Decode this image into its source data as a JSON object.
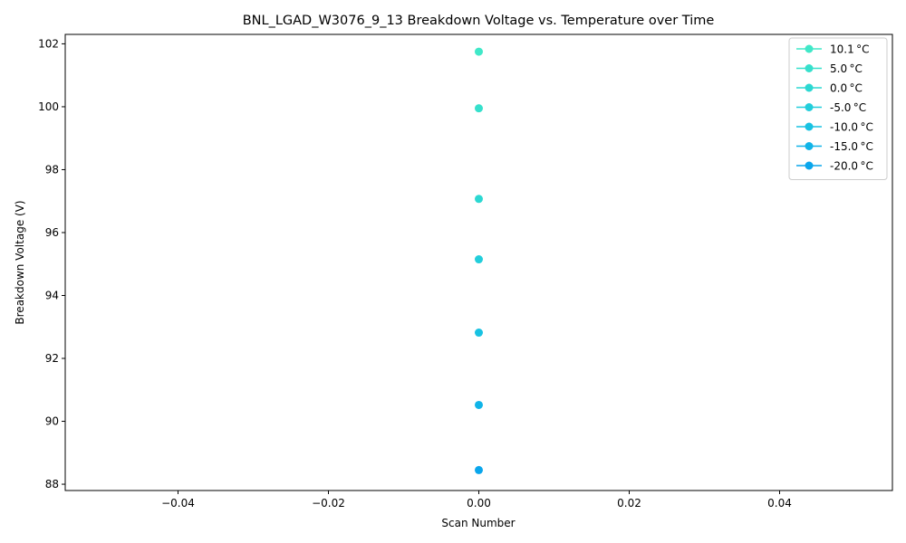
{
  "chart_data": {
    "type": "line",
    "title": "BNL_LGAD_W3076_9_13 Breakdown Voltage vs. Temperature over Time",
    "xlabel": "Scan Number",
    "ylabel": "Breakdown Voltage (V)",
    "xlim": [
      -0.055,
      0.055
    ],
    "ylim": [
      87.8,
      102.3
    ],
    "x_ticks": [
      -0.04,
      -0.02,
      0.0,
      0.02,
      0.04
    ],
    "x_tick_labels": [
      "−0.04",
      "−0.02",
      "0.00",
      "0.02",
      "0.04"
    ],
    "y_ticks": [
      88,
      90,
      92,
      94,
      96,
      98,
      100,
      102
    ],
    "y_tick_labels": [
      "88",
      "90",
      "92",
      "94",
      "96",
      "98",
      "100",
      "102"
    ],
    "grid": false,
    "legend_position": "top-right",
    "series": [
      {
        "name": "10.1 °C",
        "color": "#40e8c8",
        "x": [
          0
        ],
        "y": [
          101.75
        ]
      },
      {
        "name": "5.0 °C",
        "color": "#36e0cc",
        "x": [
          0
        ],
        "y": [
          99.95
        ]
      },
      {
        "name": "0.0 °C",
        "color": "#2cd8d2",
        "x": [
          0
        ],
        "y": [
          97.07
        ]
      },
      {
        "name": "-5.0 °C",
        "color": "#22cedb",
        "x": [
          0
        ],
        "y": [
          95.15
        ]
      },
      {
        "name": "-10.0 °C",
        "color": "#18c2e2",
        "x": [
          0
        ],
        "y": [
          92.82
        ]
      },
      {
        "name": "-15.0 °C",
        "color": "#10b4e8",
        "x": [
          0
        ],
        "y": [
          90.52
        ]
      },
      {
        "name": "-20.0 °C",
        "color": "#0aa6ec",
        "x": [
          0
        ],
        "y": [
          88.45
        ]
      }
    ]
  }
}
